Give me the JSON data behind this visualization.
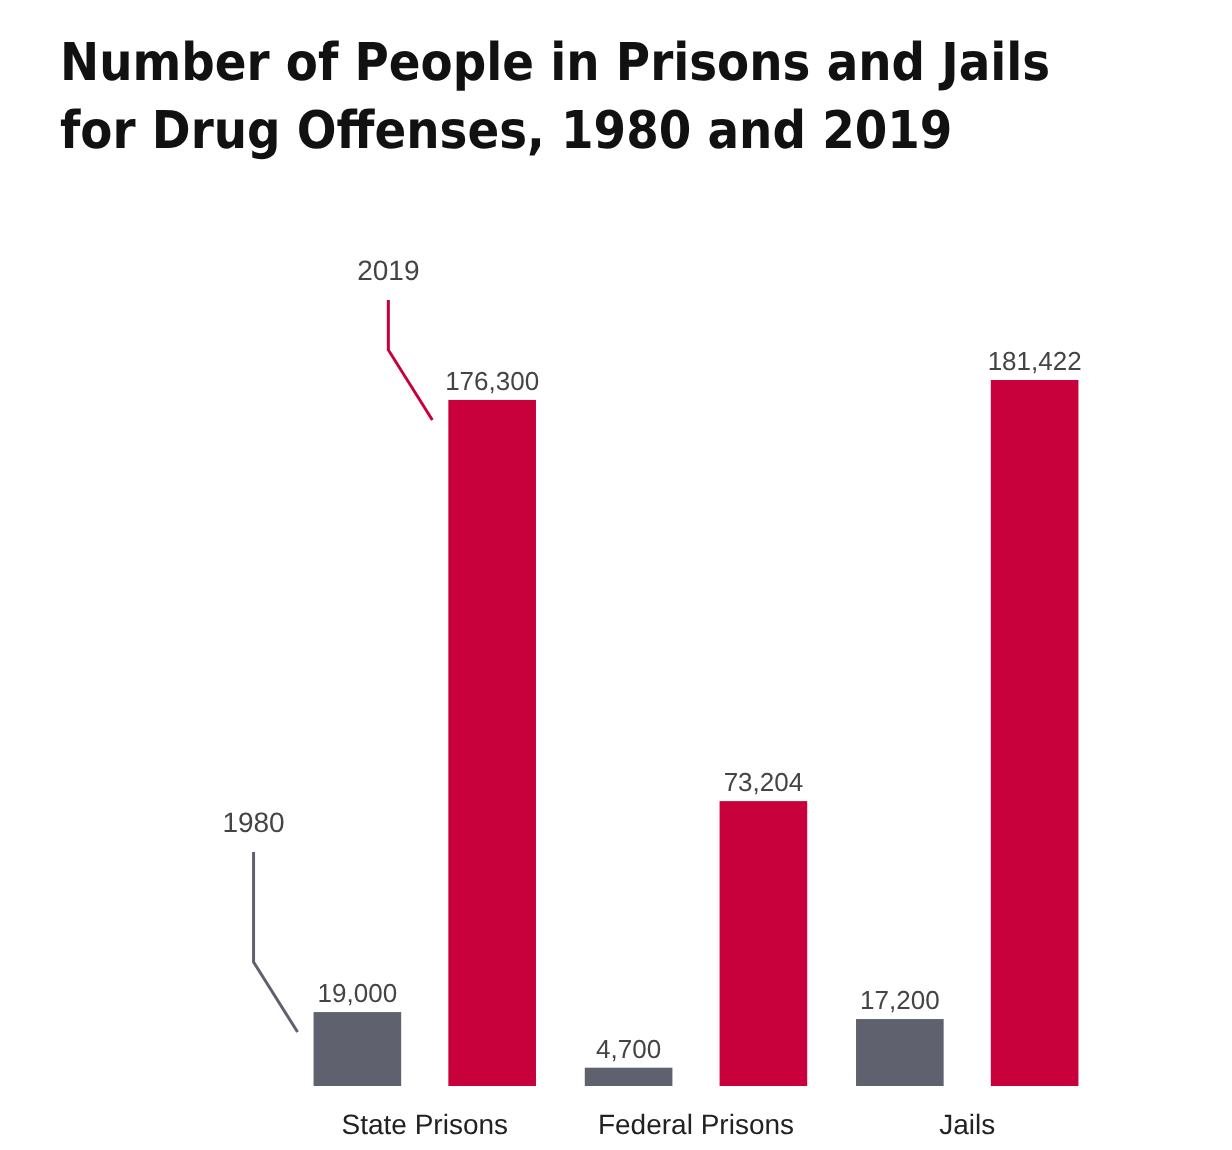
{
  "chart_data": {
    "type": "bar",
    "title": "Number of People in Prisons and Jails for Drug Offenses, 1980 and 2019",
    "categories": [
      "State Prisons",
      "Federal Prisons",
      "Jails"
    ],
    "series": [
      {
        "name": "1980",
        "color": "#5f616e",
        "values": [
          19000,
          4700,
          17200
        ],
        "value_labels": [
          "19,000",
          "4,700",
          "17,200"
        ]
      },
      {
        "name": "2019",
        "color": "#c8003c",
        "values": [
          176300,
          73204,
          181422
        ],
        "value_labels": [
          "176,300",
          "73,204",
          "181,422"
        ]
      }
    ]
  }
}
